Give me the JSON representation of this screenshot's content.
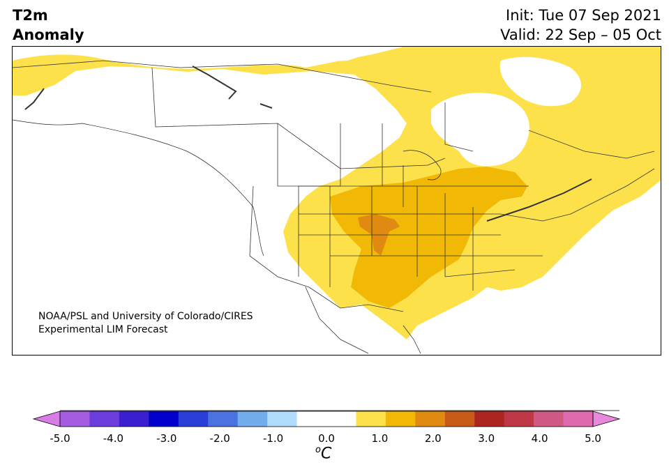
{
  "header": {
    "title_line1": "T2m",
    "title_line2": "Anomaly",
    "init_line": "Init: Tue 07 Sep 2021",
    "valid_line": "Valid: 22 Sep – 05 Oct"
  },
  "map": {
    "credit_line1": "NOAA/PSL and University of Colorado/CIRES",
    "credit_line2": "Experimental LIM Forecast"
  },
  "colorbar": {
    "unit_base": "C",
    "unit_sup": "o",
    "tick_labels": [
      "-5.0",
      "-4.0",
      "-3.0",
      "-2.0",
      "-1.0",
      "0.0",
      "1.0",
      "2.0",
      "3.0",
      "4.0",
      "5.0"
    ],
    "colors": [
      "#d97de6",
      "#a45ce0",
      "#6a3ddc",
      "#3a1fd0",
      "#0000cd",
      "#2a3ed8",
      "#4a72e0",
      "#74adec",
      "#aedcfa",
      "#ffffff",
      "#ffffff",
      "#fde14b",
      "#f2b806",
      "#e08a12",
      "#c85a18",
      "#ac2521",
      "#bf3848",
      "#d05a84",
      "#e06aae",
      "#e788db"
    ]
  }
}
